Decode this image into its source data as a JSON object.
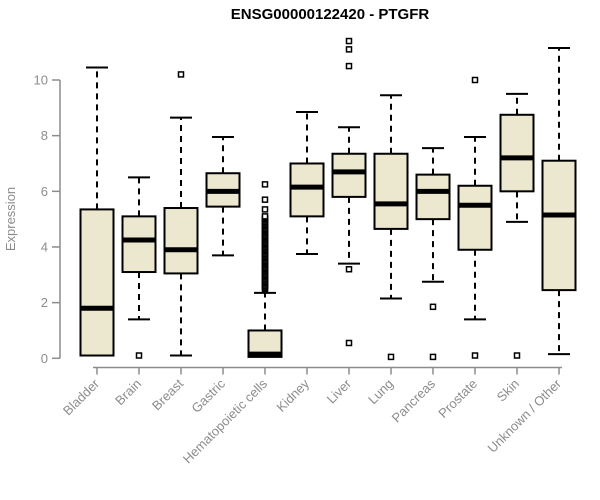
{
  "title": "ENSG00000122420 - PTGFR",
  "colors": {
    "box_fill": "#ece8d0",
    "box_border": "#000000",
    "median": "#000000",
    "whisker": "#000000",
    "outlier_stroke": "#000000",
    "axis": "#8c8c8c",
    "tick_text": "#8c8c8c",
    "title_text": "#000000",
    "background": "#ffffff"
  },
  "chart_data": {
    "type": "boxplot",
    "title": "ENSG00000122420 - PTGFR",
    "xlabel": "",
    "ylabel": "Expression",
    "ylim": [
      0,
      11.5
    ],
    "yticks": [
      0,
      2,
      4,
      6,
      8,
      10
    ],
    "grid": false,
    "legend": "none",
    "outlier_marker": "open-square",
    "whisker_style": "dashed",
    "categories": [
      "Bladder",
      "Brain",
      "Breast",
      "Gastric",
      "Hematopoietic cells",
      "Kidney",
      "Liver",
      "Lung",
      "Pancreas",
      "Prostate",
      "Skin",
      "Unknown / Other"
    ],
    "series": [
      {
        "name": "Bladder",
        "whisker_low": 0.1,
        "q1": 0.1,
        "median": 1.8,
        "q3": 5.35,
        "whisker_high": 10.45,
        "outliers": []
      },
      {
        "name": "Brain",
        "whisker_low": 1.4,
        "q1": 3.1,
        "median": 4.25,
        "q3": 5.1,
        "whisker_high": 6.5,
        "outliers": [
          0.1
        ]
      },
      {
        "name": "Breast",
        "whisker_low": 0.1,
        "q1": 3.05,
        "median": 3.9,
        "q3": 5.4,
        "whisker_high": 8.65,
        "outliers": [
          10.2
        ]
      },
      {
        "name": "Gastric",
        "whisker_low": 3.7,
        "q1": 5.45,
        "median": 6.0,
        "q3": 6.65,
        "whisker_high": 7.95,
        "outliers": []
      },
      {
        "name": "Hematopoietic cells",
        "whisker_low": 0.05,
        "q1": 0.05,
        "median": 0.15,
        "q3": 1.0,
        "whisker_high": 2.35,
        "outliers": [
          2.5,
          2.55,
          2.6,
          2.65,
          2.7,
          2.75,
          2.8,
          2.85,
          2.9,
          2.95,
          3.0,
          3.05,
          3.1,
          3.15,
          3.2,
          3.25,
          3.3,
          3.35,
          3.4,
          3.45,
          3.5,
          3.55,
          3.6,
          3.65,
          3.7,
          3.75,
          3.8,
          3.85,
          3.9,
          3.95,
          4.0,
          4.05,
          4.1,
          4.15,
          4.2,
          4.25,
          4.3,
          4.35,
          4.4,
          4.45,
          4.5,
          4.55,
          4.6,
          4.65,
          4.7,
          4.75,
          4.8,
          4.85,
          4.9,
          4.95,
          5.0,
          5.05,
          5.1,
          5.35,
          5.7,
          6.25
        ]
      },
      {
        "name": "Kidney",
        "whisker_low": 3.75,
        "q1": 5.1,
        "median": 6.15,
        "q3": 7.0,
        "whisker_high": 8.85,
        "outliers": []
      },
      {
        "name": "Liver",
        "whisker_low": 3.4,
        "q1": 5.8,
        "median": 6.7,
        "q3": 7.35,
        "whisker_high": 8.3,
        "outliers": [
          11.4,
          11.1,
          10.5,
          3.2,
          0.55
        ]
      },
      {
        "name": "Lung",
        "whisker_low": 2.15,
        "q1": 4.65,
        "median": 5.55,
        "q3": 7.35,
        "whisker_high": 9.45,
        "outliers": [
          0.05
        ]
      },
      {
        "name": "Pancreas",
        "whisker_low": 2.75,
        "q1": 5.0,
        "median": 6.0,
        "q3": 6.6,
        "whisker_high": 7.55,
        "outliers": [
          1.85,
          0.05
        ]
      },
      {
        "name": "Prostate",
        "whisker_low": 1.4,
        "q1": 3.9,
        "median": 5.5,
        "q3": 6.2,
        "whisker_high": 7.95,
        "outliers": [
          10.0,
          0.1
        ]
      },
      {
        "name": "Skin",
        "whisker_low": 4.9,
        "q1": 6.0,
        "median": 7.2,
        "q3": 8.75,
        "whisker_high": 9.5,
        "outliers": [
          0.1
        ]
      },
      {
        "name": "Unknown / Other",
        "whisker_low": 0.15,
        "q1": 2.45,
        "median": 5.15,
        "q3": 7.1,
        "whisker_high": 11.15,
        "outliers": []
      }
    ]
  }
}
